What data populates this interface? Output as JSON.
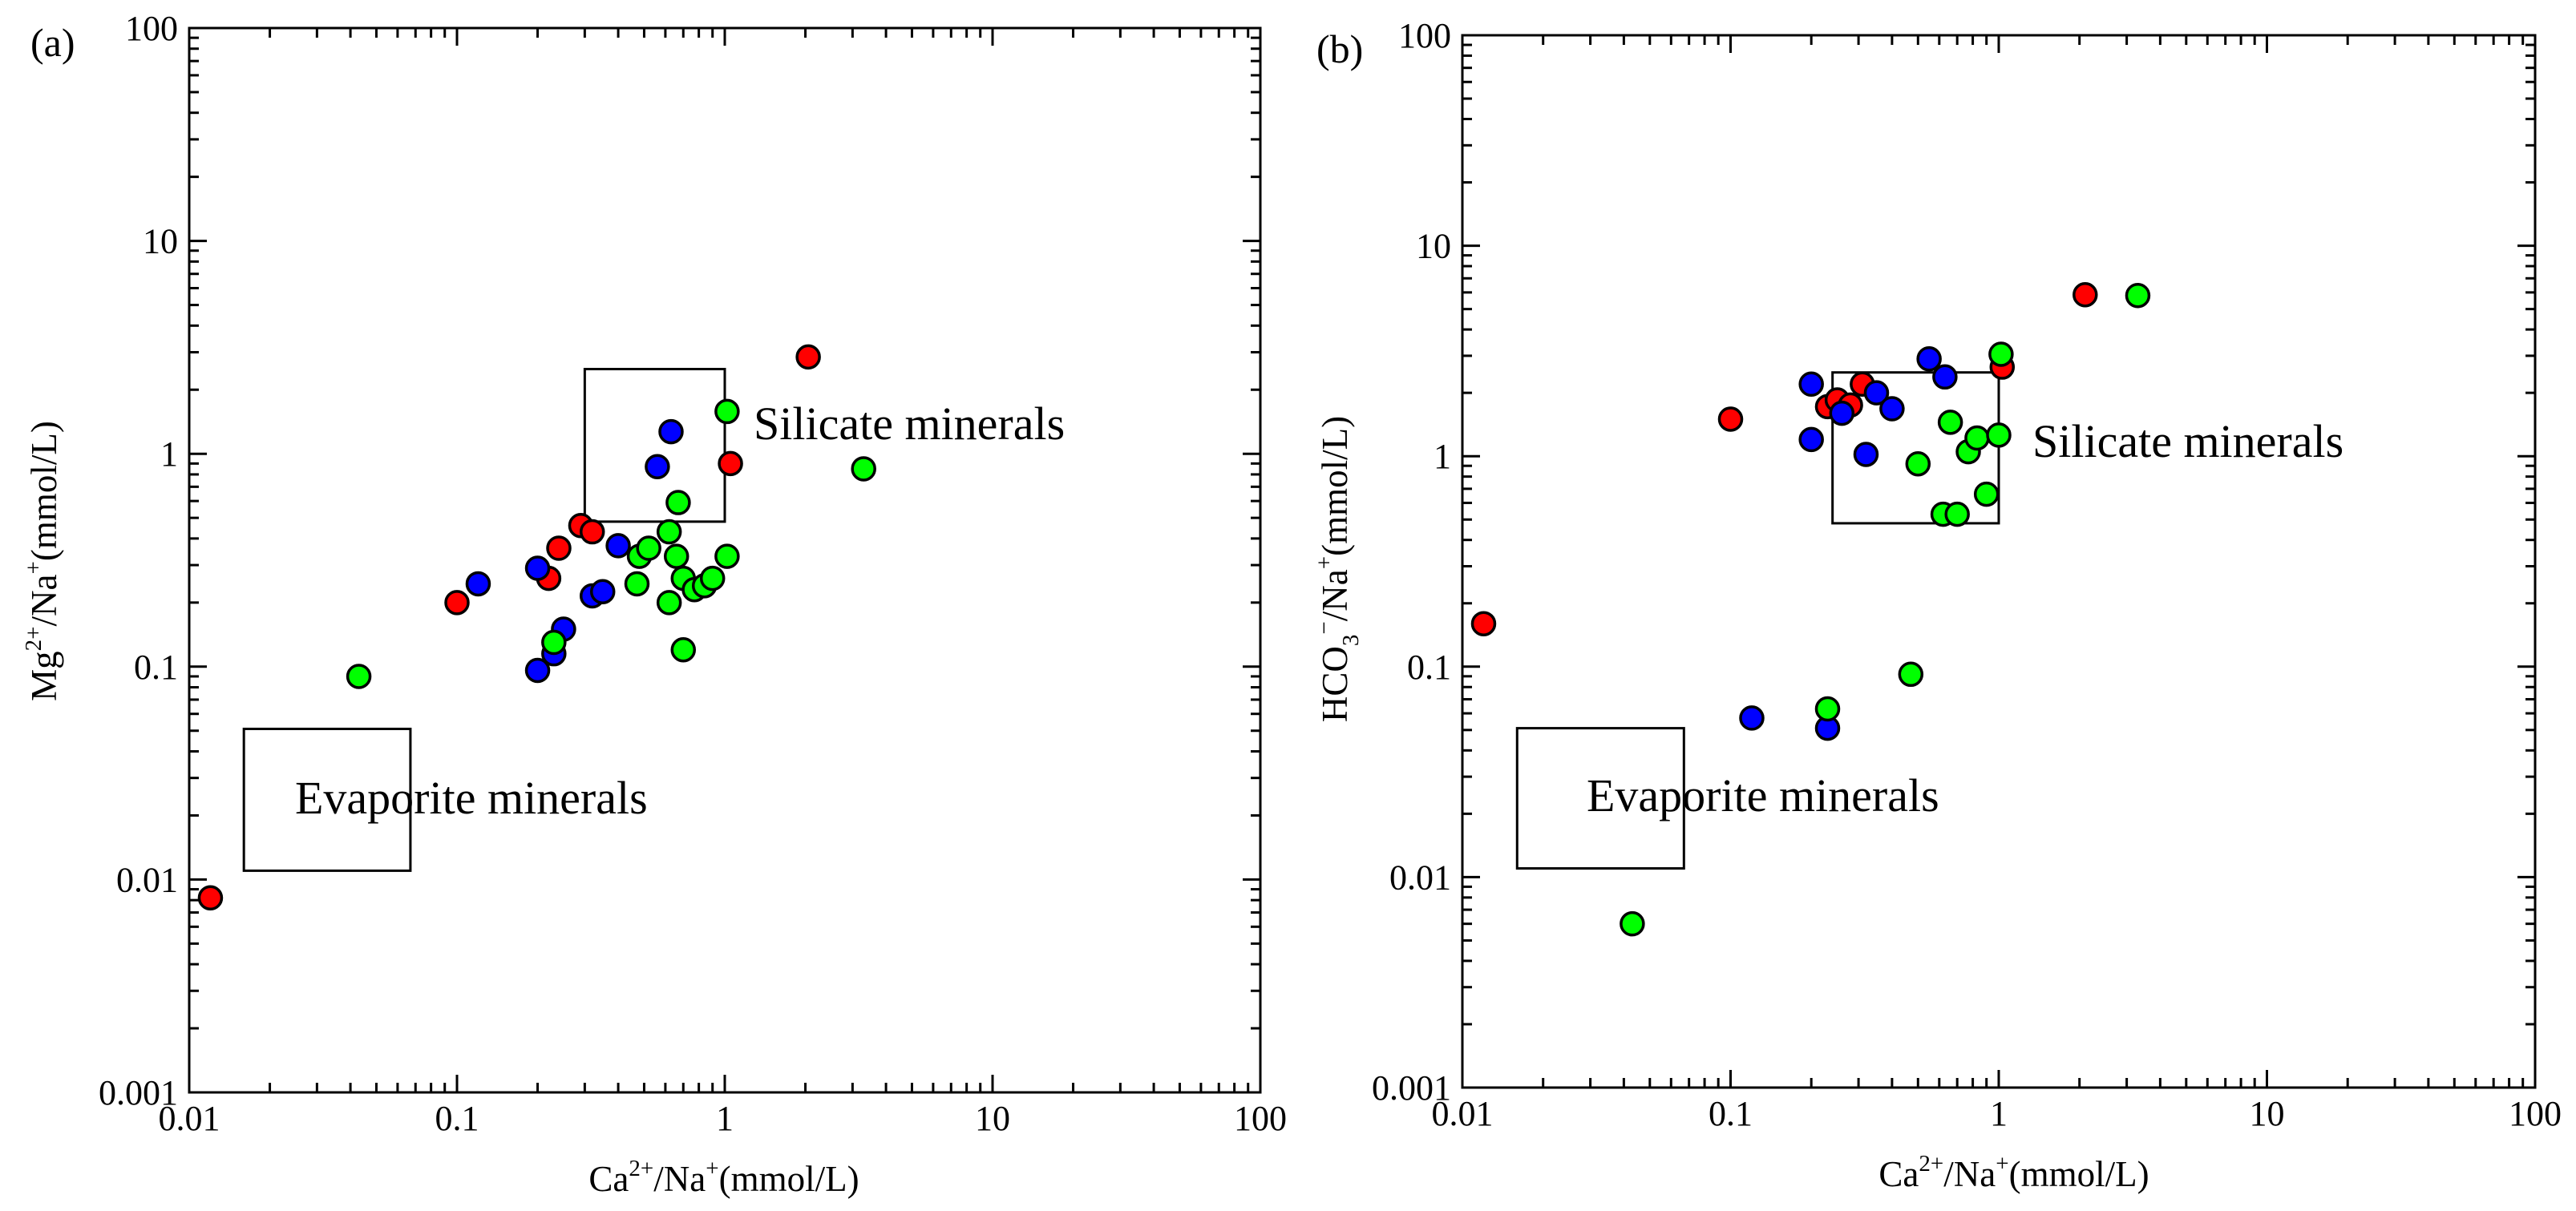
{
  "colors": {
    "red": "#ff0000",
    "blue": "#0000ff",
    "green": "#00ff00",
    "axis": "#000000"
  },
  "chart_data": [
    {
      "type": "scatter",
      "panel_label": "(a)",
      "xscale": "log",
      "yscale": "log",
      "xlim": [
        0.01,
        100
      ],
      "ylim": [
        0.001,
        100
      ],
      "x_ticks": [
        "0.01",
        "0.1",
        "1",
        "10",
        "100"
      ],
      "y_ticks": [
        "0.001",
        "0.01",
        "0.1",
        "1",
        "10",
        "100"
      ],
      "xlabel": {
        "base": "Ca",
        "sup1": "2+",
        "mid": "/Na",
        "sup2": "+",
        "tail": "(mmol/L)"
      },
      "ylabel": {
        "base": "Mg",
        "sup1": "2+",
        "mid": "/Na",
        "sup2": "+",
        "tail": "(mmol/L)"
      },
      "regions": [
        {
          "label": "Silicate minerals",
          "x_range": [
            0.3,
            1.0
          ],
          "y_range": [
            0.48,
            2.5
          ]
        },
        {
          "label": "Evaporite minerals",
          "x_range": [
            0.016,
            0.067
          ],
          "y_range": [
            0.011,
            0.051
          ]
        }
      ],
      "series": [
        {
          "name": "red",
          "color": "#ff0000",
          "points": [
            [
              0.012,
              0.0082
            ],
            [
              0.1,
              0.2
            ],
            [
              0.22,
              0.26
            ],
            [
              0.24,
              0.36
            ],
            [
              0.29,
              0.46
            ],
            [
              0.32,
              0.43
            ],
            [
              1.05,
              0.9
            ],
            [
              2.05,
              2.85
            ]
          ]
        },
        {
          "name": "blue",
          "color": "#0000ff",
          "points": [
            [
              0.12,
              0.245
            ],
            [
              0.2,
              0.29
            ],
            [
              0.2,
              0.096
            ],
            [
              0.23,
              0.115
            ],
            [
              0.25,
              0.15
            ],
            [
              0.32,
              0.215
            ],
            [
              0.35,
              0.225
            ],
            [
              0.4,
              0.37
            ],
            [
              0.56,
              0.87
            ],
            [
              0.63,
              1.27
            ]
          ]
        },
        {
          "name": "green",
          "color": "#00ff00",
          "points": [
            [
              0.043,
              0.09
            ],
            [
              0.23,
              0.13
            ],
            [
              0.47,
              0.245
            ],
            [
              0.48,
              0.33
            ],
            [
              0.52,
              0.36
            ],
            [
              0.62,
              0.2
            ],
            [
              0.62,
              0.43
            ],
            [
              0.66,
              0.33
            ],
            [
              0.67,
              0.59
            ],
            [
              0.7,
              0.12
            ],
            [
              0.7,
              0.26
            ],
            [
              0.77,
              0.23
            ],
            [
              0.84,
              0.24
            ],
            [
              0.9,
              0.26
            ],
            [
              1.02,
              0.33
            ],
            [
              1.02,
              1.58
            ],
            [
              3.3,
              0.85
            ]
          ]
        }
      ]
    },
    {
      "type": "scatter",
      "panel_label": "(b)",
      "xscale": "log",
      "yscale": "log",
      "xlim": [
        0.01,
        100
      ],
      "ylim": [
        0.001,
        100
      ],
      "x_ticks": [
        "0.01",
        "0.1",
        "1",
        "10",
        "100"
      ],
      "y_ticks": [
        "0.001",
        "0.01",
        "0.1",
        "1",
        "10",
        "100"
      ],
      "xlabel": {
        "base": "Ca",
        "sup1": "2+",
        "mid": "/Na",
        "sup2": "+",
        "tail": "(mmol/L)"
      },
      "ylabel": {
        "base": "HCO",
        "sub1": "3",
        "sup1": "−",
        "mid": "/Na",
        "sup2": "+",
        "tail": "(mmol/L)"
      },
      "regions": [
        {
          "label": "Silicate minerals",
          "x_range": [
            0.24,
            1.0
          ],
          "y_range": [
            0.48,
            2.5
          ]
        },
        {
          "label": "Evaporite minerals",
          "x_range": [
            0.016,
            0.067
          ],
          "y_range": [
            0.011,
            0.051
          ]
        }
      ],
      "series": [
        {
          "name": "red",
          "color": "#ff0000",
          "points": [
            [
              0.012,
              0.16
            ],
            [
              0.1,
              1.5
            ],
            [
              0.23,
              1.72
            ],
            [
              0.25,
              1.85
            ],
            [
              0.28,
              1.75
            ],
            [
              0.31,
              2.2
            ],
            [
              1.03,
              2.65
            ],
            [
              2.1,
              5.85
            ]
          ]
        },
        {
          "name": "blue",
          "color": "#0000ff",
          "points": [
            [
              0.12,
              0.057
            ],
            [
              0.2,
              2.2
            ],
            [
              0.2,
              1.2
            ],
            [
              0.23,
              0.051
            ],
            [
              0.26,
              1.6
            ],
            [
              0.32,
              1.02
            ],
            [
              0.35,
              2.0
            ],
            [
              0.4,
              1.68
            ],
            [
              0.55,
              2.9
            ],
            [
              0.63,
              2.38
            ]
          ]
        },
        {
          "name": "green",
          "color": "#00ff00",
          "points": [
            [
              0.043,
              0.006
            ],
            [
              0.23,
              0.063
            ],
            [
              0.47,
              0.092
            ],
            [
              0.5,
              0.92
            ],
            [
              0.62,
              0.53
            ],
            [
              0.66,
              1.45
            ],
            [
              0.7,
              0.53
            ],
            [
              0.77,
              1.05
            ],
            [
              0.83,
              1.22
            ],
            [
              0.9,
              0.66
            ],
            [
              1.0,
              1.26
            ],
            [
              1.02,
              3.05
            ],
            [
              3.3,
              5.8
            ]
          ]
        }
      ]
    }
  ]
}
